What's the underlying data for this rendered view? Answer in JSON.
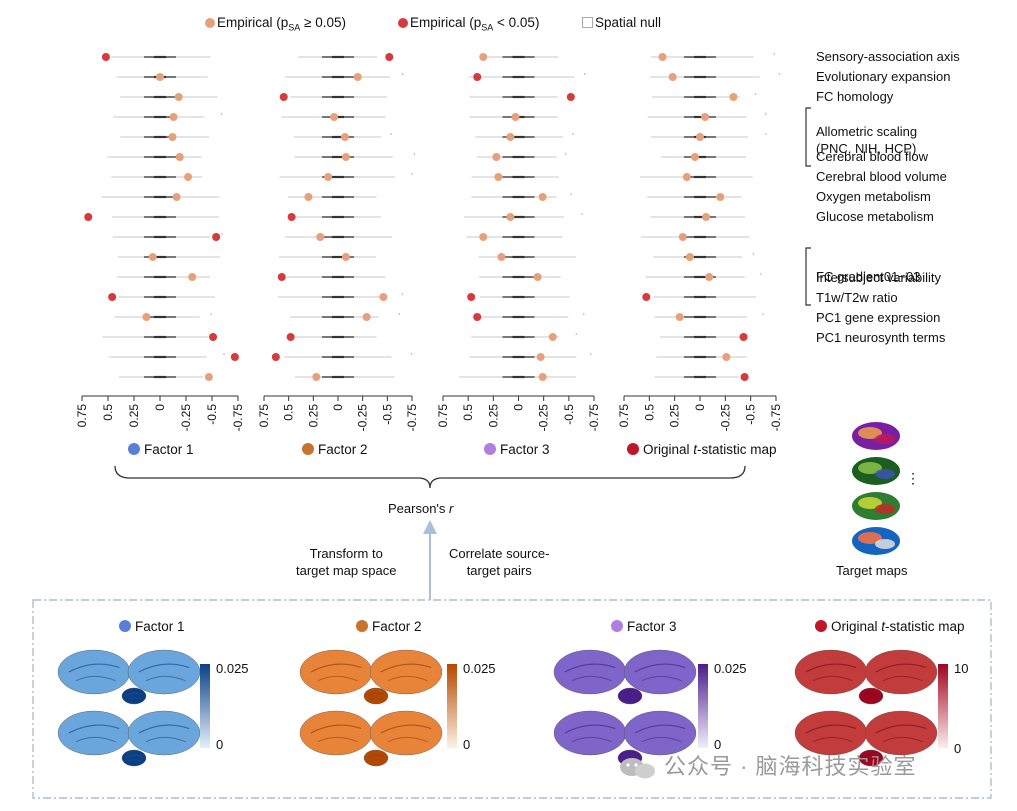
{
  "legend": {
    "empirical_ns": "Empirical (p",
    "empirical_ns_sub": "SA",
    "empirical_ns_tail": " ≥ 0.05)",
    "empirical_sig": "Empirical (p",
    "empirical_sig_sub": "SA",
    "empirical_sig_tail": " < 0.05)",
    "spatial_null": "Spatial null"
  },
  "colors": {
    "nonsig": "#e8a07a",
    "sig": "#d63a3a",
    "factor1": "#5b7fd6",
    "factor2": "#c8722e",
    "factor3": "#b07ee0",
    "original": "#c0162a",
    "bracket": "#333333",
    "arrow": "#a8c0d8",
    "dashbox": "#a9c0d6"
  },
  "maps": [
    {
      "label": "Sensory-association axis"
    },
    {
      "label": "Evolutionary expansion"
    },
    {
      "label": "FC homology"
    },
    {
      "label": "Allometric scaling"
    },
    {
      "label": ""
    },
    {
      "label": "Cerebral blood flow"
    },
    {
      "label": "Cerebral blood volume"
    },
    {
      "label": "Oxygen metabolism"
    },
    {
      "label": "Glucose metabolism"
    },
    {
      "label": ""
    },
    {
      "label": "FC gradient01~03"
    },
    {
      "label": ""
    },
    {
      "label": "Intersubject variability"
    },
    {
      "label": "T1w/T2w ratio"
    },
    {
      "label": "PC1 gene expression"
    },
    {
      "label": "PC1 neurosynth terms"
    }
  ],
  "allometric_sub": "(PNC, NIH, HCP)",
  "chart_data": [
    {
      "type": "scatter",
      "name": "Factor 1",
      "xlabel": "",
      "xlim": [
        0.75,
        -0.75
      ],
      "x_ticks": [
        "0.75",
        "0.5",
        "0.25",
        "0",
        "-0.25",
        "-0.5",
        "-0.75"
      ],
      "r": [
        0.52,
        0.0,
        -0.18,
        -0.13,
        -0.12,
        -0.19,
        -0.27,
        -0.16,
        0.69,
        -0.54,
        0.07,
        -0.31,
        0.46,
        0.13,
        -0.51,
        -0.72,
        -0.47
      ],
      "sig": [
        true,
        false,
        false,
        false,
        false,
        false,
        false,
        false,
        true,
        true,
        false,
        false,
        true,
        false,
        true,
        true,
        false
      ]
    },
    {
      "type": "scatter",
      "name": "Factor 2",
      "xlim": [
        0.75,
        -0.75
      ],
      "x_ticks": [
        "0.75",
        "0.5",
        "0.25",
        "0",
        "-0.25",
        "-0.5",
        "-0.75"
      ],
      "r": [
        -0.52,
        -0.2,
        0.55,
        0.04,
        -0.07,
        -0.08,
        0.1,
        0.3,
        0.47,
        0.18,
        -0.08,
        0.57,
        -0.46,
        -0.29,
        0.48,
        0.63,
        0.22
      ],
      "sig": [
        true,
        false,
        true,
        false,
        false,
        false,
        false,
        false,
        true,
        false,
        false,
        true,
        false,
        false,
        true,
        true,
        false
      ]
    },
    {
      "type": "scatter",
      "name": "Factor 3",
      "xlim": [
        0.75,
        -0.75
      ],
      "x_ticks": [
        "0.75",
        "0.5",
        "0.25",
        "0",
        "-0.25",
        "-0.5",
        "-0.75"
      ],
      "r": [
        0.35,
        0.41,
        -0.52,
        0.03,
        0.08,
        0.22,
        0.2,
        -0.24,
        0.08,
        0.35,
        0.17,
        -0.19,
        0.47,
        0.41,
        -0.34,
        -0.22,
        -0.24
      ],
      "sig": [
        false,
        true,
        true,
        false,
        false,
        false,
        false,
        false,
        false,
        false,
        false,
        false,
        true,
        true,
        false,
        false,
        false
      ],
      "note": "r ordering follows row order top to bottom"
    },
    {
      "type": "scatter",
      "name": "Original t-statistic map",
      "xlim": [
        0.75,
        -0.75
      ],
      "x_ticks": [
        "0.75",
        "0.5",
        "0.25",
        "0",
        "-0.25",
        "-0.5",
        "-0.75"
      ],
      "r": [
        0.37,
        0.27,
        -0.33,
        -0.05,
        0.0,
        0.05,
        0.13,
        -0.2,
        -0.06,
        0.17,
        0.1,
        -0.09,
        0.53,
        0.2,
        -0.43,
        -0.26,
        -0.44
      ],
      "sig": [
        false,
        false,
        false,
        false,
        false,
        false,
        false,
        false,
        false,
        false,
        false,
        false,
        true,
        false,
        true,
        false,
        true
      ]
    }
  ],
  "factor_labels": {
    "f1": "Factor 1",
    "f2": "Factor 2",
    "f3": "Factor 3",
    "orig": "Original ",
    "orig_t": "t",
    "orig_tail": "-statistic map"
  },
  "pearson": "Pearson's ",
  "pearson_r": "r",
  "transform": "Transform to\ntarget map space",
  "correlate": "Correlate source-\ntarget pairs",
  "target_maps": "Target maps",
  "target_ellipsis": "⋮",
  "brains": {
    "f1": {
      "title": "Factor 1",
      "cmax": "0.025",
      "cmin": "0"
    },
    "f2": {
      "title": "Factor 2",
      "cmax": "0.025",
      "cmin": "0"
    },
    "f3": {
      "title": "Factor 3",
      "cmax": "0.025",
      "cmin": "0"
    },
    "orig": {
      "title_pre": "Original ",
      "title_t": "t",
      "title_tail": "-statistic map",
      "cmax": "10",
      "cmin": "0"
    }
  },
  "watermark": "公众号 · 脑海科技实验室"
}
